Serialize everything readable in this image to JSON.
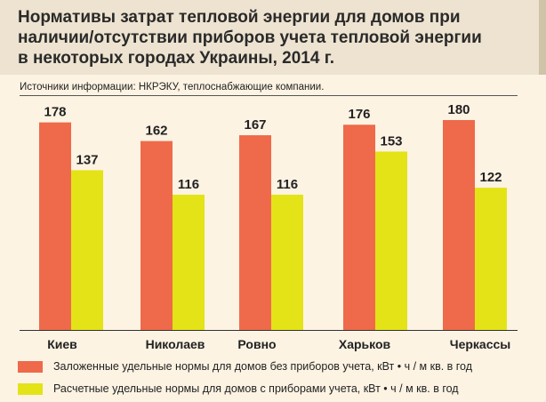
{
  "header": {
    "title_lines": [
      "Нормативы затрат тепловой энергии для домов при",
      "наличии/отсутствии приборов учета тепловой энергии",
      "в некоторых городах Украины, 2014 г."
    ]
  },
  "source": "Источники информации: НКРЭКУ, теплоснабжающие компании.",
  "colors": {
    "series_without": "#ee6a4a",
    "series_with": "#e3e317",
    "background": "#fdf3e3",
    "header_bg": "#ede3d0"
  },
  "chart_data": {
    "type": "bar",
    "title": "Нормативы затрат тепловой энергии для домов при наличии/отсутствии приборов учета тепловой энергии в некоторых городах Украины, 2014 г.",
    "categories": [
      "Киев",
      "Николаев",
      "Ровно",
      "Харьков",
      "Черкассы"
    ],
    "series": [
      {
        "name": "Заложенные удельные нормы для домов без приборов учета, кВт • ч / м кв. в год",
        "values": [
          178,
          162,
          167,
          176,
          180
        ]
      },
      {
        "name": "Расчетные удельные нормы для домов с приборами учета, кВт • ч / м кв. в год",
        "values": [
          137,
          116,
          116,
          153,
          122
        ]
      }
    ],
    "xlabel": "",
    "ylabel": "",
    "ylim": [
      0,
      180
    ],
    "grid": false,
    "legend": "bottom"
  },
  "legend": {
    "item1": "Заложенные удельные нормы для домов без приборов учета, кВт • ч / м кв. в год",
    "item2": "Расчетные удельные нормы для домов с приборами учета, кВт • ч / м кв. в год"
  }
}
